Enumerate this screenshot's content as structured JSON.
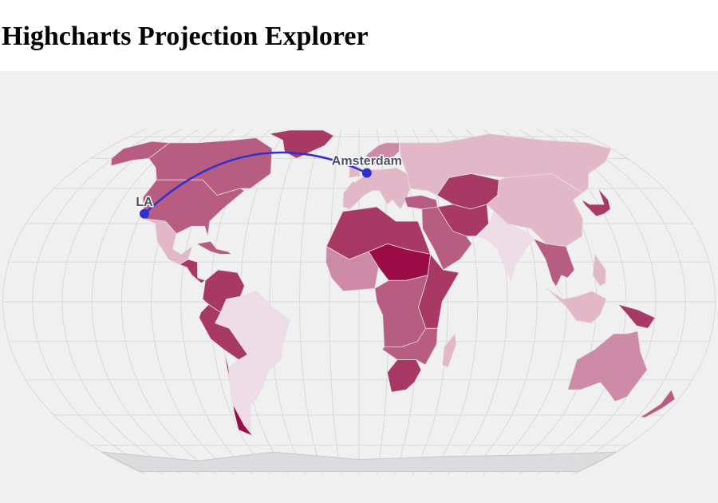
{
  "page": {
    "title": "Highcharts Projection Explorer"
  },
  "map": {
    "projection": "equal-earth",
    "colors": {
      "background": "#f0f0f0",
      "graticule": "#d9d9dc",
      "route": "#3030d0",
      "point": "#3030d0",
      "scale": [
        "#eedce6",
        "#e2b8c8",
        "#cc8aa6",
        "#b75d82",
        "#a83864",
        "#9b0b45"
      ]
    },
    "points": [
      {
        "name": "LA",
        "lon": -118.24,
        "lat": 34.05
      },
      {
        "name": "Amsterdam",
        "lon": 4.9,
        "lat": 52.37
      }
    ],
    "route": {
      "from": "LA",
      "to": "Amsterdam"
    },
    "regions": [
      {
        "id": "canada",
        "shade": 3
      },
      {
        "id": "usa",
        "shade": 3
      },
      {
        "id": "greenland",
        "shade": 4
      },
      {
        "id": "alaska",
        "shade": 3
      },
      {
        "id": "mexico",
        "shade": 1
      },
      {
        "id": "central-america",
        "shade": 4
      },
      {
        "id": "caribbean",
        "shade": 3
      },
      {
        "id": "colombia-venezuela",
        "shade": 4
      },
      {
        "id": "brazil",
        "shade": 0
      },
      {
        "id": "peru-bolivia",
        "shade": 4
      },
      {
        "id": "chile",
        "shade": 5
      },
      {
        "id": "argentina",
        "shade": 0
      },
      {
        "id": "europe",
        "shade": 1
      },
      {
        "id": "scandinavia",
        "shade": 2
      },
      {
        "id": "russia",
        "shade": 1
      },
      {
        "id": "central-asia",
        "shade": 4
      },
      {
        "id": "middle-east",
        "shade": 3
      },
      {
        "id": "iran-afghanistan",
        "shade": 4
      },
      {
        "id": "india",
        "shade": 0
      },
      {
        "id": "china",
        "shade": 1
      },
      {
        "id": "southeast-asia",
        "shade": 3
      },
      {
        "id": "japan-korea",
        "shade": 4
      },
      {
        "id": "indonesia",
        "shade": 1
      },
      {
        "id": "new-guinea",
        "shade": 4
      },
      {
        "id": "australia",
        "shade": 2
      },
      {
        "id": "new-zealand",
        "shade": 3
      },
      {
        "id": "north-africa",
        "shade": 4
      },
      {
        "id": "west-africa",
        "shade": 2
      },
      {
        "id": "sahel",
        "shade": 5
      },
      {
        "id": "east-africa",
        "shade": 4
      },
      {
        "id": "central-africa",
        "shade": 3
      },
      {
        "id": "southern-africa",
        "shade": 3
      },
      {
        "id": "south-africa",
        "shade": 4
      },
      {
        "id": "madagascar",
        "shade": 1
      },
      {
        "id": "antarctica",
        "shade": -1
      }
    ]
  }
}
